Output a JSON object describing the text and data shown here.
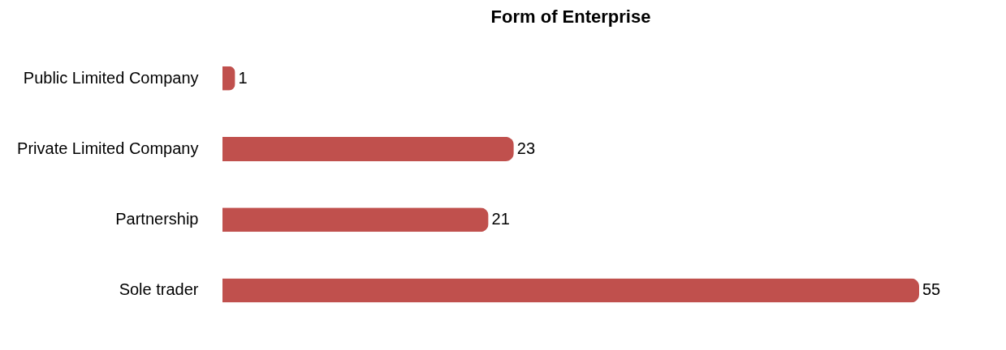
{
  "chart_data": {
    "type": "bar",
    "orientation": "horizontal",
    "title": "Form of Enterprise",
    "categories": [
      "Public Limited Company",
      "Private Limited Company",
      "Partnership",
      "Sole trader"
    ],
    "values": [
      1,
      23,
      21,
      55
    ],
    "color": "#c0504d",
    "data_labels": true
  }
}
